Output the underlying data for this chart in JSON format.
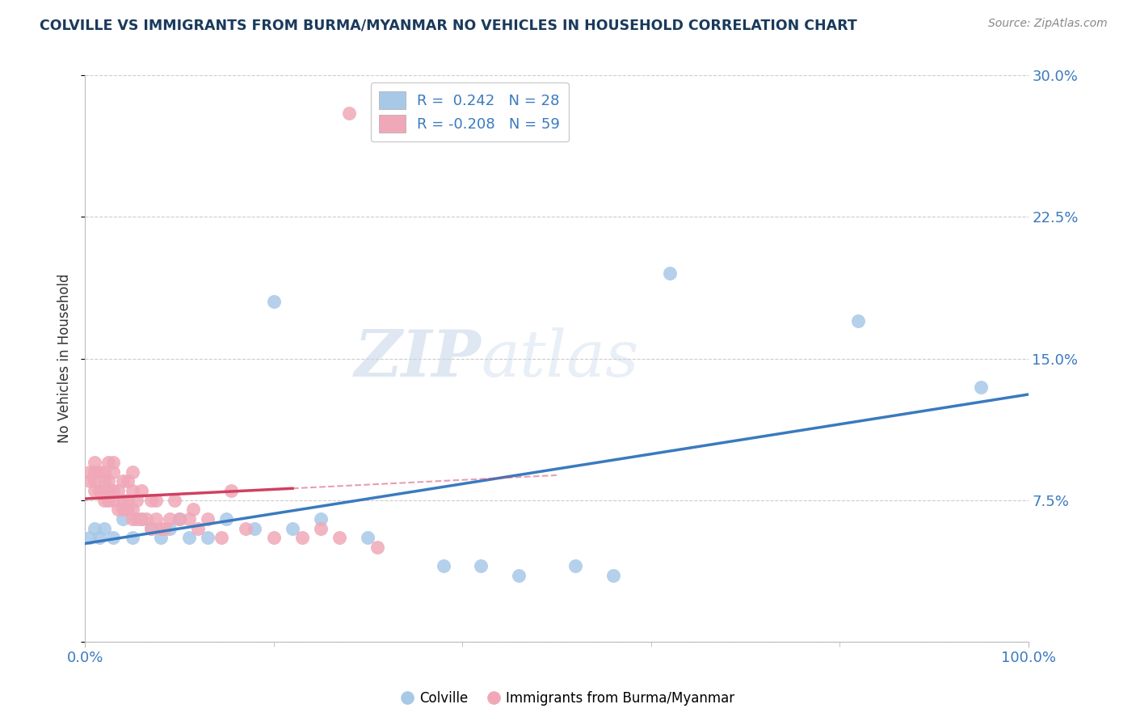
{
  "title": "COLVILLE VS IMMIGRANTS FROM BURMA/MYANMAR NO VEHICLES IN HOUSEHOLD CORRELATION CHART",
  "source_text": "Source: ZipAtlas.com",
  "ylabel": "No Vehicles in Household",
  "xlim": [
    0.0,
    1.0
  ],
  "ylim": [
    0.0,
    0.3
  ],
  "yticks": [
    0.0,
    0.075,
    0.15,
    0.225,
    0.3
  ],
  "ytick_labels": [
    "",
    "7.5%",
    "15.0%",
    "22.5%",
    "30.0%"
  ],
  "xticks": [
    0.0,
    1.0
  ],
  "xtick_labels": [
    "0.0%",
    "100.0%"
  ],
  "title_color": "#1a3a5c",
  "source_color": "#888888",
  "axis_color": "#bbbbbb",
  "grid_color": "#cccccc",
  "blue_color": "#a8c8e8",
  "pink_color": "#f0a8b8",
  "blue_line_color": "#3a7abf",
  "pink_line_color": "#d04060",
  "legend_blue_label": "Colville",
  "legend_pink_label": "Immigrants from Burma/Myanmar",
  "R_blue": 0.242,
  "N_blue": 28,
  "R_pink": -0.208,
  "N_pink": 59,
  "watermark_zip": "ZIP",
  "watermark_atlas": "atlas",
  "blue_scatter_x": [
    0.005,
    0.01,
    0.015,
    0.02,
    0.03,
    0.04,
    0.05,
    0.06,
    0.07,
    0.08,
    0.09,
    0.1,
    0.11,
    0.13,
    0.15,
    0.18,
    0.2,
    0.22,
    0.25,
    0.3,
    0.38,
    0.42,
    0.46,
    0.52,
    0.56,
    0.62,
    0.82,
    0.95
  ],
  "blue_scatter_y": [
    0.055,
    0.06,
    0.055,
    0.06,
    0.055,
    0.065,
    0.055,
    0.065,
    0.06,
    0.055,
    0.06,
    0.065,
    0.055,
    0.055,
    0.065,
    0.06,
    0.18,
    0.06,
    0.065,
    0.055,
    0.04,
    0.04,
    0.035,
    0.04,
    0.035,
    0.195,
    0.17,
    0.135
  ],
  "pink_scatter_x": [
    0.005,
    0.005,
    0.01,
    0.01,
    0.01,
    0.01,
    0.015,
    0.015,
    0.02,
    0.02,
    0.02,
    0.02,
    0.025,
    0.025,
    0.025,
    0.025,
    0.03,
    0.03,
    0.03,
    0.03,
    0.035,
    0.035,
    0.04,
    0.04,
    0.04,
    0.045,
    0.045,
    0.045,
    0.05,
    0.05,
    0.05,
    0.05,
    0.055,
    0.055,
    0.06,
    0.06,
    0.065,
    0.07,
    0.07,
    0.075,
    0.075,
    0.08,
    0.085,
    0.09,
    0.095,
    0.1,
    0.11,
    0.115,
    0.12,
    0.13,
    0.145,
    0.155,
    0.17,
    0.2,
    0.23,
    0.25,
    0.27,
    0.31,
    0.28
  ],
  "pink_scatter_y": [
    0.085,
    0.09,
    0.08,
    0.085,
    0.09,
    0.095,
    0.08,
    0.09,
    0.075,
    0.08,
    0.085,
    0.09,
    0.075,
    0.08,
    0.085,
    0.095,
    0.075,
    0.08,
    0.09,
    0.095,
    0.07,
    0.08,
    0.07,
    0.075,
    0.085,
    0.07,
    0.075,
    0.085,
    0.065,
    0.07,
    0.08,
    0.09,
    0.065,
    0.075,
    0.065,
    0.08,
    0.065,
    0.06,
    0.075,
    0.065,
    0.075,
    0.06,
    0.06,
    0.065,
    0.075,
    0.065,
    0.065,
    0.07,
    0.06,
    0.065,
    0.055,
    0.08,
    0.06,
    0.055,
    0.055,
    0.06,
    0.055,
    0.05,
    0.28
  ]
}
